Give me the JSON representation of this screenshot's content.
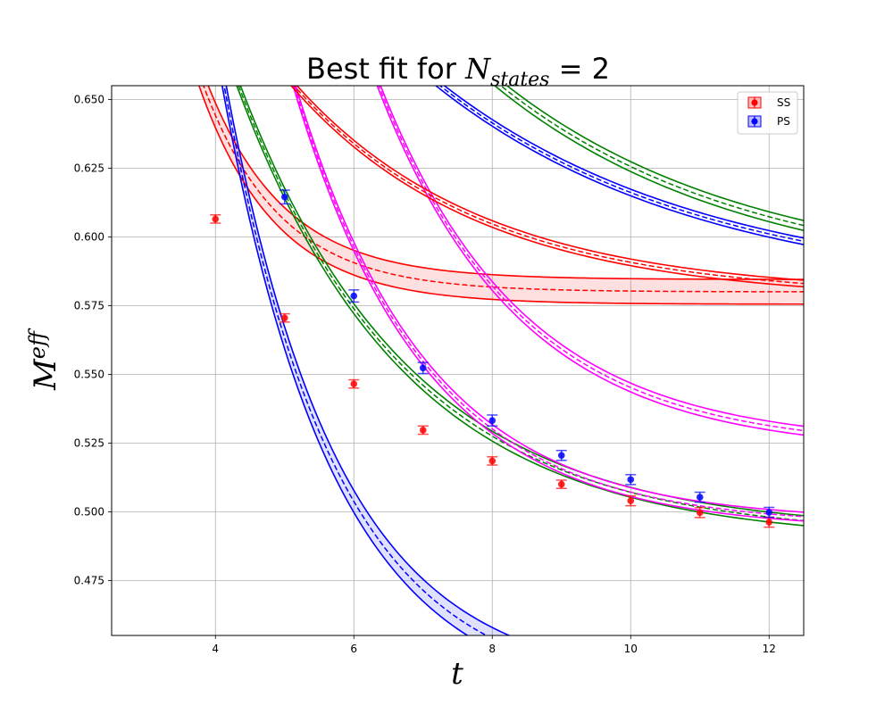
{
  "chart_data": {
    "type": "scatter",
    "title": {
      "prefix": "Best fit for ",
      "symbol": "N",
      "subscript": "states",
      "suffix": " = 2"
    },
    "xlabel": "t",
    "ylabel": {
      "base": "M",
      "superscript": "eff"
    },
    "xlim": [
      2.5,
      12.5
    ],
    "ylim": [
      0.455,
      0.655
    ],
    "xticks": [
      4,
      6,
      8,
      10,
      12
    ],
    "yticks": [
      0.475,
      0.5,
      0.525,
      0.55,
      0.575,
      0.6,
      0.625,
      0.65
    ],
    "ytick_labels": [
      "0.475",
      "0.500",
      "0.525",
      "0.550",
      "0.575",
      "0.600",
      "0.625",
      "0.650"
    ],
    "grid": true,
    "legend_position": "top-right",
    "series": [
      {
        "name": "SS",
        "color": "#ff0000",
        "points": [
          {
            "x": 4,
            "y": 0.6065,
            "err": 0.0015
          },
          {
            "x": 5,
            "y": 0.5705,
            "err": 0.0015
          },
          {
            "x": 6,
            "y": 0.5465,
            "err": 0.0015
          },
          {
            "x": 7,
            "y": 0.5297,
            "err": 0.0015
          },
          {
            "x": 8,
            "y": 0.5185,
            "err": 0.0015
          },
          {
            "x": 9,
            "y": 0.51,
            "err": 0.0015
          },
          {
            "x": 10,
            "y": 0.504,
            "err": 0.0018
          },
          {
            "x": 11,
            "y": 0.4997,
            "err": 0.0018
          },
          {
            "x": 12,
            "y": 0.4962,
            "err": 0.0018
          }
        ]
      },
      {
        "name": "PS",
        "color": "#0000ff",
        "points": [
          {
            "x": 5,
            "y": 0.6145,
            "err": 0.0025
          },
          {
            "x": 6,
            "y": 0.5785,
            "err": 0.0022
          },
          {
            "x": 7,
            "y": 0.5523,
            "err": 0.002
          },
          {
            "x": 8,
            "y": 0.5332,
            "err": 0.002
          },
          {
            "x": 9,
            "y": 0.5205,
            "err": 0.0018
          },
          {
            "x": 10,
            "y": 0.5117,
            "err": 0.0018
          },
          {
            "x": 11,
            "y": 0.5053,
            "err": 0.0018
          },
          {
            "x": 12,
            "y": 0.4998,
            "err": 0.0018
          }
        ]
      }
    ],
    "fit_curves": [
      {
        "color": "#ff0000",
        "A": 0.58,
        "B": 2.35,
        "k": 0.9,
        "band": 0.0045,
        "t_min": 2.5,
        "band_fill": true
      },
      {
        "color": "#0000ff",
        "A": 0.433,
        "B": 2.75,
        "k": 0.61,
        "band": 0.004,
        "t_min": 2.5,
        "band_fill": true
      },
      {
        "color": "#008000",
        "A": 0.583,
        "B": 0.7,
        "k": 0.28,
        "band": 0.0018,
        "t_min": 2.5,
        "band_fill": false
      },
      {
        "color": "#008000",
        "A": 0.491,
        "B": 0.97,
        "k": 0.41,
        "band": 0.0018,
        "t_min": 2.5,
        "band_fill": false
      },
      {
        "color": "#ff00ff",
        "A": 0.523,
        "B": 2.98,
        "k": 0.49,
        "band": 0.0016,
        "t_min": 2.5,
        "band_fill": false
      },
      {
        "color": "#ff00ff",
        "A": 0.495,
        "B": 2.44,
        "k": 0.53,
        "band": 0.0016,
        "t_min": 2.5,
        "band_fill": false
      },
      {
        "color": "#ff0000",
        "A": 0.578,
        "B": 0.515,
        "k": 0.37,
        "band": 0.0012,
        "t_min": 2.5,
        "band_fill": false
      },
      {
        "color": "#0000ff",
        "A": 0.579,
        "B": 0.5,
        "k": 0.26,
        "band": 0.0012,
        "t_min": 2.5,
        "band_fill": false
      }
    ]
  }
}
